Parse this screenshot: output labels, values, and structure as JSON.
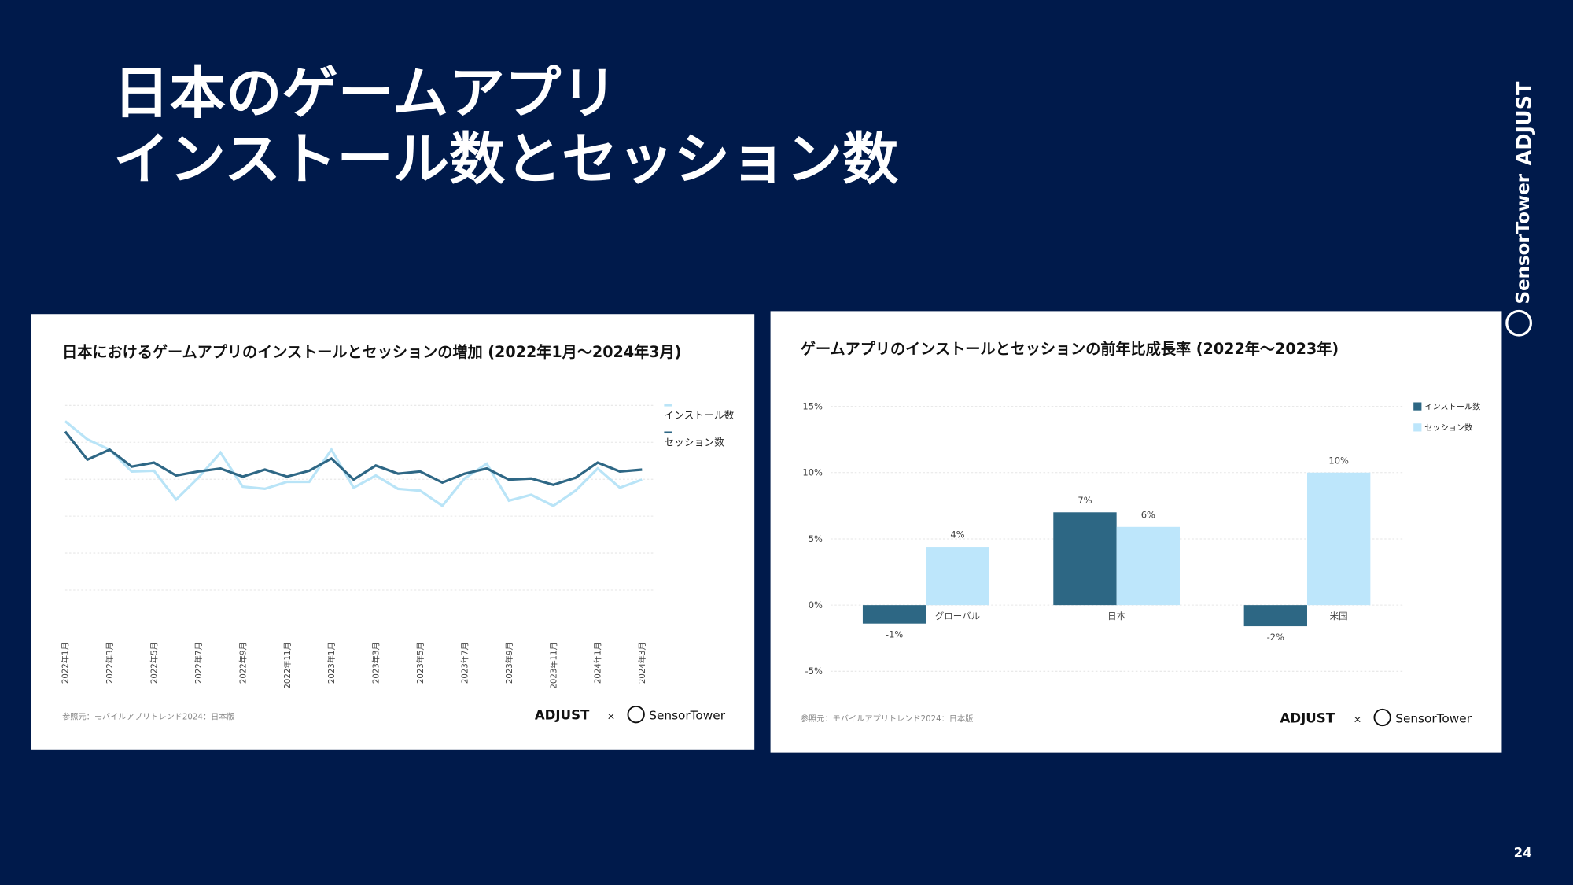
{
  "slide": {
    "title_lines": [
      "日本のゲームアプリ",
      "インストール数とセッション数"
    ],
    "side_brand_1": "ADJUST",
    "side_brand_2": "SensorTower",
    "page_number": "24",
    "cards": [
      {
        "source": "参照元：モバイルアプリトレンド2024：日本版",
        "brand_1": "ADJUST",
        "times": "×",
        "brand_2": "SensorTower"
      },
      {
        "source": "参照元：モバイルアプリトレンド2024：日本版",
        "brand_1": "ADJUST",
        "times": "×",
        "brand_2": "SensorTower"
      }
    ]
  },
  "chart_data": [
    {
      "type": "line",
      "title": "日本におけるゲームアプリのインストールとセッションの増加 (2022年1月～2024年3月)",
      "categories": [
        "2022年1月",
        null,
        "2022年3月",
        null,
        "2022年5月",
        null,
        "2022年7月",
        null,
        "2022年9月",
        null,
        "2022年11月",
        null,
        "2023年1月",
        null,
        "2023年3月",
        null,
        "2023年5月",
        null,
        "2023年7月",
        null,
        "2023年9月",
        null,
        "2023年11月",
        null,
        "2024年1月",
        null,
        "2024年3月"
      ],
      "series": [
        {
          "name": "インストール数",
          "color": "#b9e4f7",
          "values": [
            4.57,
            4.08,
            3.8,
            3.21,
            3.23,
            2.45,
            3.04,
            3.72,
            2.8,
            2.74,
            2.93,
            2.93,
            3.8,
            2.77,
            3.1,
            2.74,
            2.69,
            2.28,
            3.02,
            3.42,
            2.42,
            2.58,
            2.28,
            2.69,
            3.29,
            2.77,
            2.99
          ]
        },
        {
          "name": "セッション数",
          "color": "#2e6785",
          "values": [
            4.29,
            3.53,
            3.8,
            3.34,
            3.45,
            3.1,
            3.21,
            3.29,
            3.07,
            3.26,
            3.07,
            3.23,
            3.56,
            2.99,
            3.37,
            3.15,
            3.21,
            2.91,
            3.15,
            3.29,
            2.99,
            3.02,
            2.85,
            3.04,
            3.45,
            3.21,
            3.26
          ]
        }
      ],
      "ylim": [
        0,
        5
      ],
      "gridlines": [
        0,
        1,
        2,
        3,
        4,
        5
      ],
      "grid": true,
      "legend": "right"
    },
    {
      "type": "bar",
      "title": "ゲームアプリのインストールとセッションの前年比成長率 (2022年～2023年)",
      "categories": [
        "グローバル",
        "日本",
        "米国"
      ],
      "series": [
        {
          "name": "インストール数",
          "color": "#2d6784",
          "values": [
            -1.4,
            7.0,
            -1.6
          ],
          "value_labels": [
            "-1%",
            "7%",
            "-2%"
          ]
        },
        {
          "name": "セッション数",
          "color": "#bde6fb",
          "values": [
            4.4,
            5.9,
            10.0
          ],
          "value_labels": [
            "4%",
            "6%",
            "10%"
          ]
        }
      ],
      "ylim": [
        -5,
        15
      ],
      "yticks": [
        {
          "value": -5,
          "label": "-5%"
        },
        {
          "value": 0,
          "label": "0%"
        },
        {
          "value": 5,
          "label": "5%"
        },
        {
          "value": 10,
          "label": "10%"
        },
        {
          "value": 15,
          "label": "15%"
        }
      ],
      "grid": true,
      "legend": "top-right"
    }
  ]
}
